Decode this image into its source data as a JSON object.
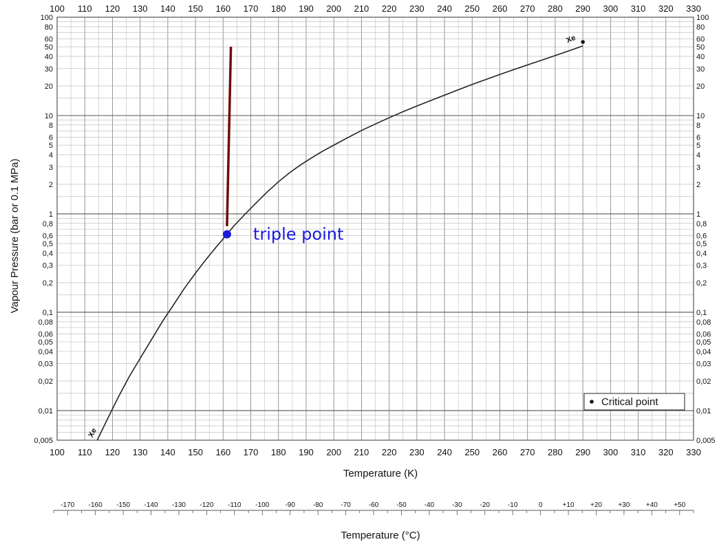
{
  "chart_data": {
    "type": "line",
    "title": "",
    "xlabel": "Temperature (K)",
    "ylabel": "Vapour Pressure (bar or 0.1 MPa)",
    "xlabel2": "Temperature (°C)",
    "xlim": [
      100,
      330
    ],
    "ylim": [
      0.005,
      100
    ],
    "yscale": "log",
    "grid": true,
    "x_ticks": [
      "100",
      "110",
      "120",
      "130",
      "140",
      "150",
      "160",
      "170",
      "180",
      "190",
      "200",
      "210",
      "220",
      "230",
      "240",
      "250",
      "260",
      "270",
      "280",
      "290",
      "300",
      "310",
      "320",
      "330"
    ],
    "y_ticks_left": [
      {
        "v": 100,
        "t": "100"
      },
      {
        "v": 80,
        "t": "80"
      },
      {
        "v": 60,
        "t": "60"
      },
      {
        "v": 50,
        "t": "50"
      },
      {
        "v": 40,
        "t": "40"
      },
      {
        "v": 30,
        "t": "30"
      },
      {
        "v": 20,
        "t": "20"
      },
      {
        "v": 10,
        "t": "10"
      },
      {
        "v": 8,
        "t": "8"
      },
      {
        "v": 6,
        "t": "6"
      },
      {
        "v": 5,
        "t": "5"
      },
      {
        "v": 4,
        "t": "4"
      },
      {
        "v": 3,
        "t": "3"
      },
      {
        "v": 2,
        "t": "2"
      },
      {
        "v": 1,
        "t": "1"
      },
      {
        "v": 0.8,
        "t": "0,8"
      },
      {
        "v": 0.6,
        "t": "0,6"
      },
      {
        "v": 0.5,
        "t": "0,5"
      },
      {
        "v": 0.4,
        "t": "0,4"
      },
      {
        "v": 0.3,
        "t": "0,3"
      },
      {
        "v": 0.2,
        "t": "0,2"
      },
      {
        "v": 0.1,
        "t": "0,1"
      },
      {
        "v": 0.08,
        "t": "0,08"
      },
      {
        "v": 0.06,
        "t": "0,06"
      },
      {
        "v": 0.05,
        "t": "0,05"
      },
      {
        "v": 0.04,
        "t": "0,04"
      },
      {
        "v": 0.03,
        "t": "0,03"
      },
      {
        "v": 0.02,
        "t": "0,02"
      },
      {
        "v": 0.01,
        "t": "0,01"
      },
      {
        "v": 0.005,
        "t": "0,005"
      }
    ],
    "y_ticks_right": [
      {
        "v": 100,
        "t": "100"
      },
      {
        "v": 80,
        "t": "80"
      },
      {
        "v": 60,
        "t": "60"
      },
      {
        "v": 50,
        "t": "50"
      },
      {
        "v": 40,
        "t": "40"
      },
      {
        "v": 30,
        "t": "30"
      },
      {
        "v": 20,
        "t": "20"
      },
      {
        "v": 10,
        "t": "10"
      },
      {
        "v": 8,
        "t": "8"
      },
      {
        "v": 6,
        "t": "6"
      },
      {
        "v": 5,
        "t": "5"
      },
      {
        "v": 4,
        "t": "4"
      },
      {
        "v": 3,
        "t": "3"
      },
      {
        "v": 2,
        "t": "2"
      },
      {
        "v": 1,
        "t": "1"
      },
      {
        "v": 0.8,
        "t": "0,8"
      },
      {
        "v": 0.6,
        "t": "0,6"
      },
      {
        "v": 0.5,
        "t": "0,5"
      },
      {
        "v": 0.4,
        "t": "0,4"
      },
      {
        "v": 0.3,
        "t": "0,3"
      },
      {
        "v": 0.2,
        "t": "0,2"
      },
      {
        "v": 0.1,
        "t": "0,1"
      },
      {
        "v": 0.08,
        "t": "0,08"
      },
      {
        "v": 0.06,
        "t": "0,06"
      },
      {
        "v": 0.05,
        "t": "0,05"
      },
      {
        "v": 0.04,
        "t": "0,04"
      },
      {
        "v": 0.03,
        "t": "0,03"
      },
      {
        "v": 0.02,
        "t": "0,02"
      },
      {
        "v": 0.01,
        "t": "0,01"
      },
      {
        "v": 0.005,
        "t": "0,005"
      }
    ],
    "celsius_ticks": [
      {
        "v": -170,
        "t": "-170"
      },
      {
        "v": -160,
        "t": "-160"
      },
      {
        "v": -150,
        "t": "-150"
      },
      {
        "v": -140,
        "t": "-140"
      },
      {
        "v": -130,
        "t": "-130"
      },
      {
        "v": -120,
        "t": "-120"
      },
      {
        "v": -110,
        "t": "-110"
      },
      {
        "v": -100,
        "t": "-100"
      },
      {
        "v": -90,
        "t": "-90"
      },
      {
        "v": -80,
        "t": "-80"
      },
      {
        "v": -70,
        "t": "-70"
      },
      {
        "v": -60,
        "t": "-60"
      },
      {
        "v": -50,
        "t": "-50"
      },
      {
        "v": -40,
        "t": "-40"
      },
      {
        "v": -30,
        "t": "-30"
      },
      {
        "v": -20,
        "t": "-20"
      },
      {
        "v": -10,
        "t": "-10"
      },
      {
        "v": 0,
        "t": "0"
      },
      {
        "v": 10,
        "t": "+10"
      },
      {
        "v": 20,
        "t": "+20"
      },
      {
        "v": 30,
        "t": "+30"
      },
      {
        "v": 40,
        "t": "+40"
      },
      {
        "v": 50,
        "t": "+50"
      }
    ],
    "celsius_range": [
      -175,
      55
    ],
    "series": [
      {
        "name": "Xe",
        "color": "#222222",
        "points": [
          [
            114.5,
            0.005
          ],
          [
            118,
            0.008
          ],
          [
            122,
            0.0135
          ],
          [
            126,
            0.022
          ],
          [
            130,
            0.034
          ],
          [
            134,
            0.052
          ],
          [
            138,
            0.08
          ],
          [
            142,
            0.118
          ],
          [
            146,
            0.175
          ],
          [
            150,
            0.25
          ],
          [
            154,
            0.35
          ],
          [
            158,
            0.48
          ],
          [
            161.4,
            0.62
          ],
          [
            164,
            0.76
          ],
          [
            168,
            1.0
          ],
          [
            172,
            1.3
          ],
          [
            176,
            1.68
          ],
          [
            180,
            2.12
          ],
          [
            184,
            2.62
          ],
          [
            188,
            3.15
          ],
          [
            192,
            3.72
          ],
          [
            196,
            4.35
          ],
          [
            200,
            5.0
          ],
          [
            205,
            5.95
          ],
          [
            210,
            7.05
          ],
          [
            215,
            8.2
          ],
          [
            220,
            9.5
          ],
          [
            225,
            10.95
          ],
          [
            230,
            12.5
          ],
          [
            235,
            14.2
          ],
          [
            240,
            16.1
          ],
          [
            245,
            18.3
          ],
          [
            250,
            20.7
          ],
          [
            255,
            23.3
          ],
          [
            260,
            26.2
          ],
          [
            265,
            29.3
          ],
          [
            270,
            32.7
          ],
          [
            275,
            36.5
          ],
          [
            280,
            40.8
          ],
          [
            285,
            45.5
          ],
          [
            290,
            51.0
          ]
        ]
      },
      {
        "name": "",
        "color": "#6e0b0b",
        "points": [
          [
            161.4,
            0.75
          ],
          [
            162.8,
            50
          ]
        ]
      }
    ],
    "critical_point": {
      "x": 290,
      "y": 56
    },
    "triple_point": {
      "x": 161.4,
      "y": 0.62,
      "color": "#1a1adf",
      "label": "triple point"
    },
    "series_labels": [
      {
        "text": "Xe",
        "x": 286,
        "y": 57,
        "rotate": -22
      },
      {
        "text": "Xe",
        "x": 113.5,
        "y": 0.0058,
        "rotate": -62
      }
    ],
    "legend": {
      "label": "Critical point",
      "position": "bottom-right"
    }
  }
}
